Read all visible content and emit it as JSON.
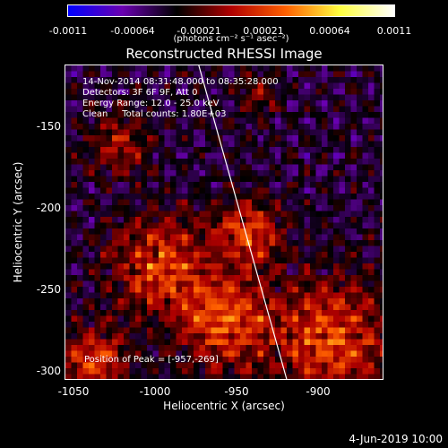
{
  "colorbar": {
    "ticks": [
      "-0.0011",
      "-0.00064",
      "-0.00021",
      "0.00021",
      "0.00064",
      "0.0011"
    ],
    "units": "(photons cm⁻² s⁻¹ asec⁻²)",
    "colors": [
      "#0000ff",
      "#6a00b0",
      "#000000",
      "#b00000",
      "#ff6000",
      "#ffff40",
      "#ffffff"
    ]
  },
  "title": "Reconstructed RHESSI Image",
  "info": {
    "time": "14-Nov-2014 08:31:48.000 to 08:35:28.000",
    "detectors": "Detectors: 3F 6F 9F, Att 0",
    "energy": "Energy Range: 12.0 - 25.0 keV",
    "clean": "Clean     Total counts: 1.80E+03"
  },
  "peak": "Position of Peak = [-957,-269]",
  "axes": {
    "xlabel": "Heliocentric X (arcsec)",
    "ylabel": "Heliocentric Y (arcsec)",
    "xticks": [
      "-1050",
      "-1000",
      "-950",
      "-900"
    ],
    "yticks": [
      "-150",
      "-200",
      "-250",
      "-300"
    ]
  },
  "date_stamp": "4-Jun-2019 10:00",
  "chart_data": {
    "type": "heatmap",
    "title": "Reconstructed RHESSI Image",
    "xlabel": "Heliocentric X (arcsec)",
    "ylabel": "Heliocentric Y (arcsec)",
    "xlim": [
      -1058,
      -863
    ],
    "ylim": [
      -305,
      -112
    ],
    "zlim": [
      -0.0011,
      0.0011
    ],
    "colorbar_ticks": [
      -0.0011,
      -0.00064,
      -0.00021,
      0.00021,
      0.00064,
      0.0011
    ],
    "peak_position": [
      -957,
      -269
    ],
    "limb_line": {
      "x": [
        -976,
        -922
      ],
      "y": [
        -112,
        -305
      ]
    },
    "bright_sources": [
      {
        "x": -945,
        "y": -215,
        "radius": 20,
        "level": 0.00085
      },
      {
        "x": -1000,
        "y": -235,
        "radius": 30,
        "level": 0.00085
      },
      {
        "x": -1040,
        "y": -295,
        "radius": 20,
        "level": 0.00085
      },
      {
        "x": -960,
        "y": -270,
        "radius": 28,
        "level": 0.0009
      },
      {
        "x": -895,
        "y": -280,
        "radius": 35,
        "level": 0.0009
      },
      {
        "x": -1025,
        "y": -160,
        "radius": 18,
        "level": 0.0006
      },
      {
        "x": -940,
        "y": -130,
        "radius": 15,
        "level": 0.00035
      }
    ]
  }
}
